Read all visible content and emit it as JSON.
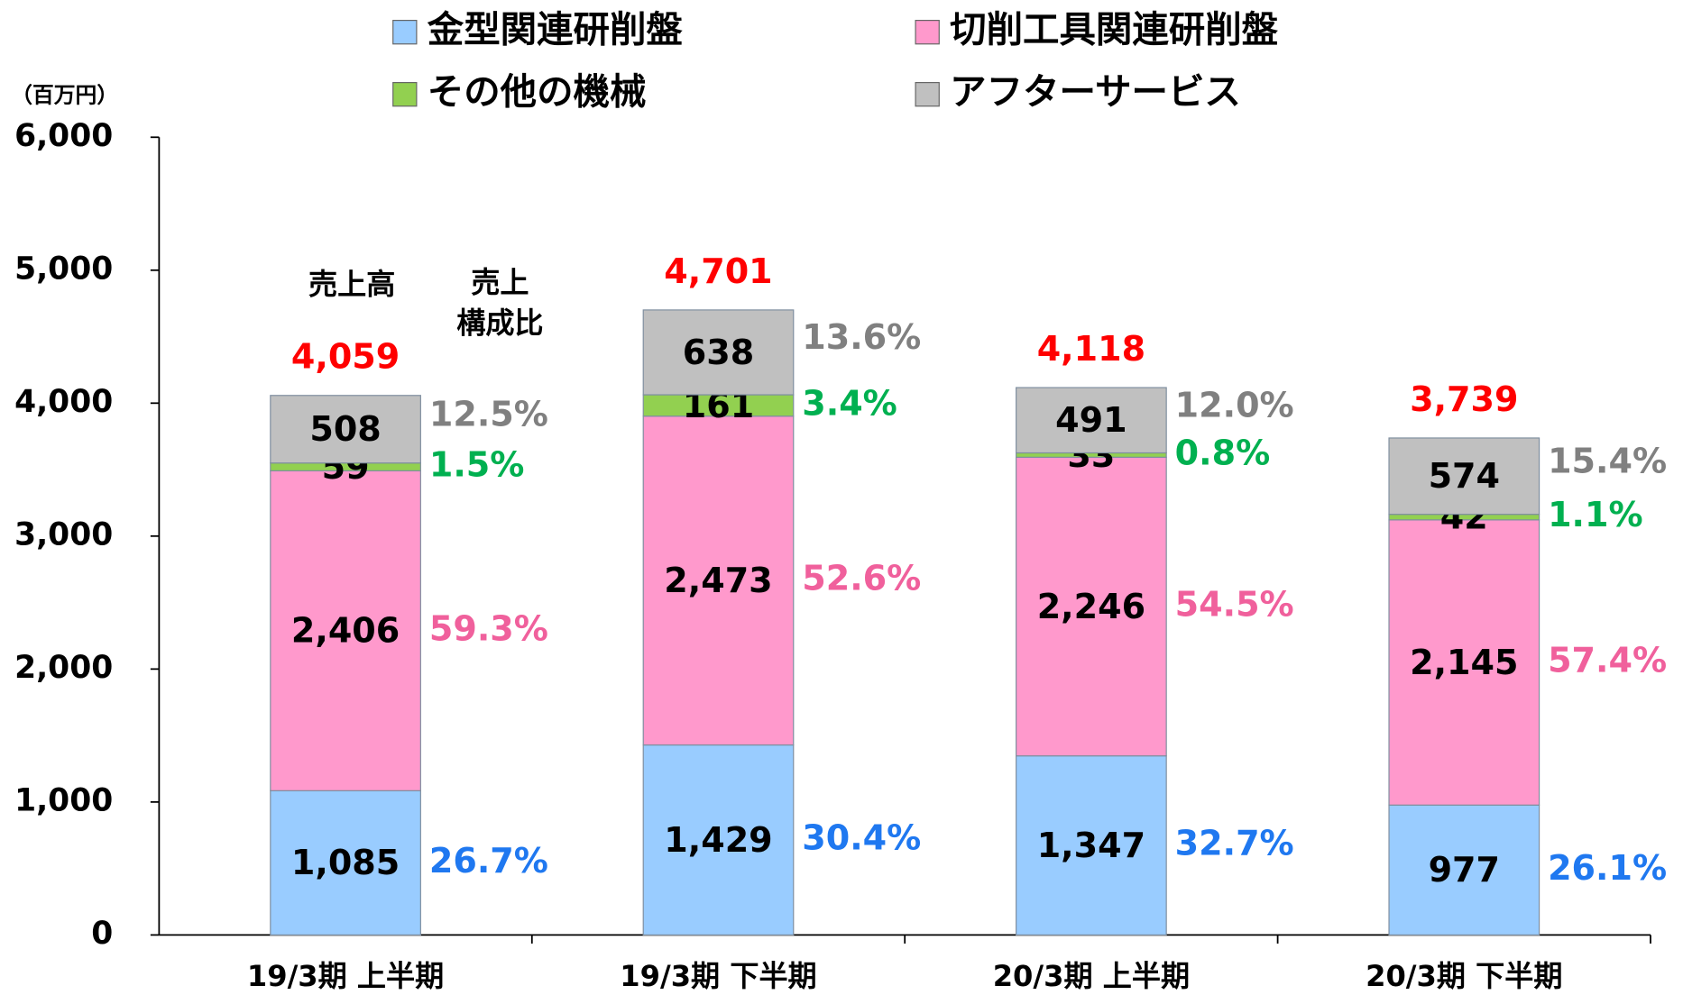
{
  "chart_data": {
    "type": "stacked_bar",
    "y_axis_label": "（百万円）",
    "categories": [
      "19/3期 上半期",
      "19/3期 下半期",
      "20/3期 上半期",
      "20/3期 下半期"
    ],
    "series": [
      {
        "name": "金型関連研削盤",
        "color": "#99ccff",
        "share_color": "#1f78f0",
        "values": [
          1085,
          1429,
          1347,
          977
        ],
        "value_labels": [
          "1,085",
          "1,429",
          "1,347",
          "977"
        ],
        "share_labels": [
          "26.7%",
          "30.4%",
          "32.7%",
          "26.1%"
        ]
      },
      {
        "name": "切削工具関連研削盤",
        "color": "#ff99cc",
        "share_color": "#f0609c",
        "values": [
          2406,
          2473,
          2246,
          2145
        ],
        "value_labels": [
          "2,406",
          "2,473",
          "2,246",
          "2,145"
        ],
        "share_labels": [
          "59.3%",
          "52.6%",
          "54.5%",
          "57.4%"
        ]
      },
      {
        "name": "その他の機械",
        "color": "#92d050",
        "share_color": "#00b050",
        "values": [
          59,
          161,
          33,
          42
        ],
        "value_labels": [
          "59",
          "161",
          "33",
          "42"
        ],
        "share_labels": [
          "1.5%",
          "3.4%",
          "0.8%",
          "1.1%"
        ]
      },
      {
        "name": "アフターサービス",
        "color": "#c0c0c0",
        "share_color": "#808080",
        "values": [
          508,
          638,
          491,
          574
        ],
        "value_labels": [
          "508",
          "638",
          "491",
          "574"
        ],
        "share_labels": [
          "12.5%",
          "13.6%",
          "12.0%",
          "15.4%"
        ]
      }
    ],
    "totals": [
      4059,
      4701,
      4118,
      3739
    ],
    "total_labels": [
      "4,059",
      "4,701",
      "4,118",
      "3,739"
    ],
    "total_color": "#ff0000",
    "annotations": [
      "売上高",
      "売上",
      "構成比"
    ],
    "ylim": [
      0,
      6000
    ],
    "yticks": [
      0,
      {
        "value": 1000,
        "label": "1,000"
      },
      {
        "value": 2000,
        "label": "2,000"
      },
      {
        "value": 3000,
        "label": "3,000"
      },
      {
        "value": 4000,
        "label": "4,000"
      },
      {
        "value": 5000,
        "label": "5,000"
      },
      {
        "value": 6000,
        "label": "6,000"
      }
    ]
  }
}
